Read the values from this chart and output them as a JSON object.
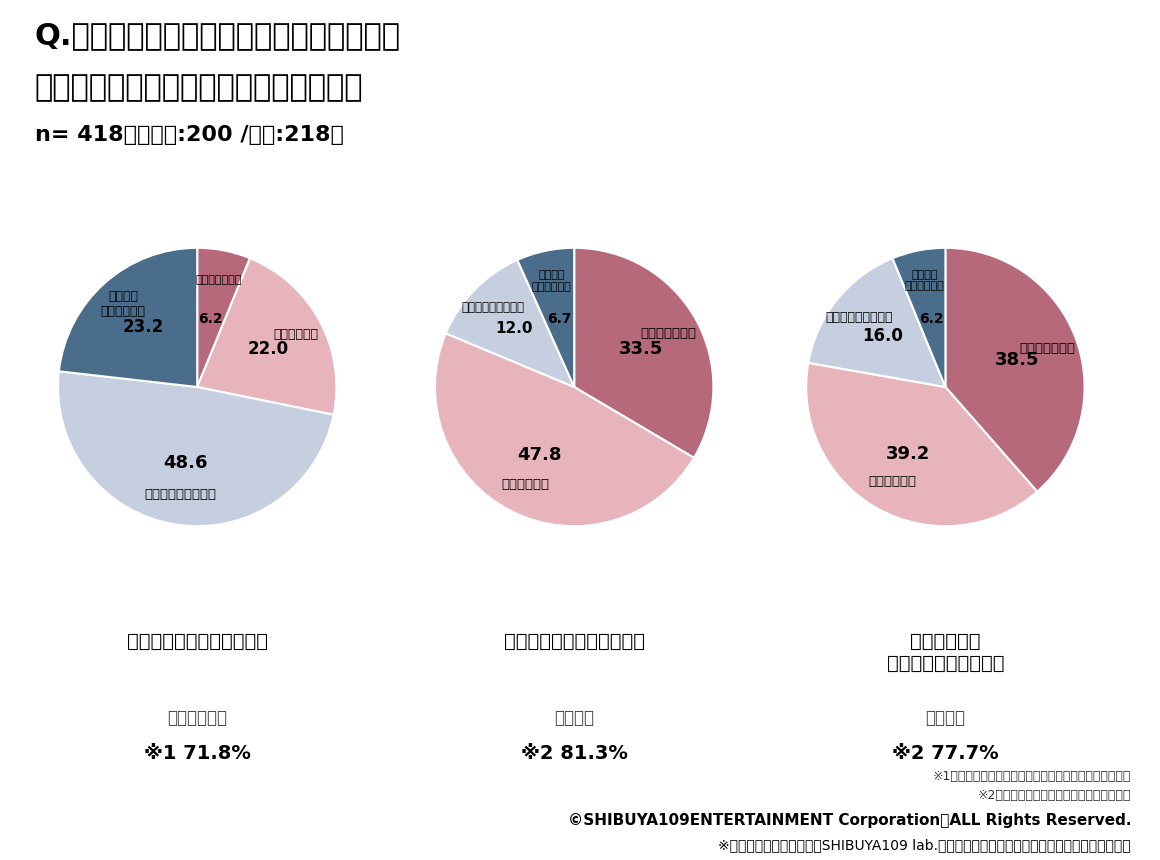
{
  "title_line1": "Q.政治に関してあなたにあてはまる考えを",
  "title_line2": "それぞれ教えてください。（単一回答）",
  "subtitle": "n= 418　（男性:200 /女性:218）",
  "charts": [
    {
      "label": "日本の政治に期待している",
      "sublabel1": "そう思わない",
      "sublabel2": "※1 71.8%",
      "slices": [
        6.2,
        22.0,
        48.6,
        23.2
      ],
      "slice_labels": [
        "とてもそう思う",
        "ややそう思う",
        "あまりそう思わない",
        "まったく\nそう思わない"
      ],
      "colors": [
        "#b5697a",
        "#e8b4bc",
        "#c5cfe0",
        "#4a6d8c"
      ],
      "startangle": 90
    },
    {
      "label": "日本の政治に不安を覚える",
      "sublabel1": "そう思う",
      "sublabel2": "※2 81.3%",
      "slices": [
        33.5,
        47.8,
        12.0,
        6.7
      ],
      "slice_labels": [
        "とてもそう思う",
        "ややそう思う",
        "あまりそう思わない",
        "まったく\nそう思わない"
      ],
      "colors": [
        "#b5697a",
        "#e8b4bc",
        "#c5cfe0",
        "#4a6d8c"
      ],
      "startangle": 90
    },
    {
      "label": "日本の政治が\n変わってほしいと思う",
      "sublabel1": "そう思う",
      "sublabel2": "※2 77.7%",
      "slices": [
        38.5,
        39.2,
        16.0,
        6.2
      ],
      "slice_labels": [
        "とてもそう思う",
        "ややそう思う",
        "あまりそう思わない",
        "まったく\nそう思わない"
      ],
      "colors": [
        "#b5697a",
        "#e8b4bc",
        "#c5cfe0",
        "#4a6d8c"
      ],
      "startangle": 90
    }
  ],
  "footnote1": "※1「あまりそう思わない」「まったくそう思わない」計",
  "footnote2": "※2「とてもそう思う」「ややそう思う」計",
  "copyright": "©SHIBUYA109ENTERTAINMENT Corporation　ALL Rights Reserved.",
  "usage_note": "※ご使用の際は、出典元がSHIBUYA109 lab.である旨を明記くださいますようお願いいたします",
  "bg_color": "#ffffff"
}
